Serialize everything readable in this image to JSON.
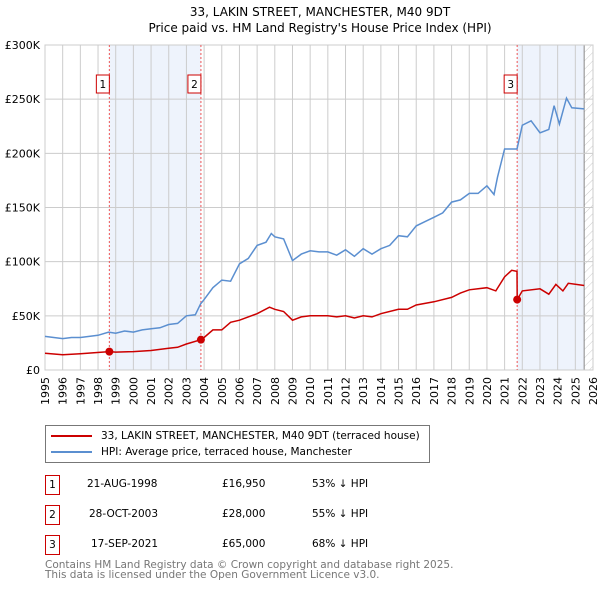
{
  "chart_data": {
    "type": "line",
    "title": "33, LAKIN STREET, MANCHESTER, M40 9DT",
    "subtitle": "Price paid vs. HM Land Registry's House Price Index (HPI)",
    "xlim": [
      1995,
      2026
    ],
    "ylim": [
      0,
      300000
    ],
    "x_ticks": [
      "1995",
      "1996",
      "1997",
      "1998",
      "1999",
      "2000",
      "2001",
      "2002",
      "2003",
      "2004",
      "2005",
      "2006",
      "2007",
      "2008",
      "2009",
      "2010",
      "2011",
      "2012",
      "2013",
      "2014",
      "2015",
      "2016",
      "2017",
      "2018",
      "2019",
      "2020",
      "2021",
      "2022",
      "2023",
      "2024",
      "2025",
      "2026"
    ],
    "y_ticks": [
      {
        "v": 0,
        "label": "£0"
      },
      {
        "v": 50000,
        "label": "£50K"
      },
      {
        "v": 100000,
        "label": "£100K"
      },
      {
        "v": 150000,
        "label": "£150K"
      },
      {
        "v": 200000,
        "label": "£200K"
      },
      {
        "v": 250000,
        "label": "£250K"
      },
      {
        "v": 300000,
        "label": "£300K"
      }
    ],
    "grid": true,
    "colors": {
      "price": "#cc0000",
      "hpi": "#5b8fd0",
      "shade": "#eef3fc"
    },
    "series": [
      {
        "name": "33, LAKIN STREET, MANCHESTER, M40 9DT (terraced house)",
        "points": [
          [
            1995,
            15500
          ],
          [
            1996,
            14000
          ],
          [
            1997,
            15000
          ],
          [
            1998.64,
            16950
          ],
          [
            1999,
            16500
          ],
          [
            2000,
            17000
          ],
          [
            2001,
            18000
          ],
          [
            2002,
            20000
          ],
          [
            2002.5,
            21000
          ],
          [
            2003,
            24000
          ],
          [
            2003.82,
            28000
          ],
          [
            2004,
            30000
          ],
          [
            2004.5,
            37000
          ],
          [
            2005,
            37000
          ],
          [
            2005.5,
            44000
          ],
          [
            2006,
            46000
          ],
          [
            2007,
            52000
          ],
          [
            2007.7,
            58000
          ],
          [
            2008,
            56000
          ],
          [
            2008.5,
            54000
          ],
          [
            2009,
            46000
          ],
          [
            2009.5,
            49000
          ],
          [
            2010,
            50000
          ],
          [
            2011,
            50000
          ],
          [
            2011.5,
            49000
          ],
          [
            2012,
            50000
          ],
          [
            2012.5,
            48000
          ],
          [
            2013,
            50000
          ],
          [
            2013.5,
            49000
          ],
          [
            2014,
            52000
          ],
          [
            2015,
            56000
          ],
          [
            2015.5,
            56000
          ],
          [
            2016,
            60000
          ],
          [
            2017,
            63000
          ],
          [
            2018,
            67000
          ],
          [
            2018.5,
            71000
          ],
          [
            2019,
            74000
          ],
          [
            2020,
            76000
          ],
          [
            2020.5,
            73000
          ],
          [
            2021,
            86000
          ],
          [
            2021.4,
            92000
          ],
          [
            2021.7,
            91000
          ],
          [
            2021.71,
            65000
          ],
          [
            2022,
            73000
          ],
          [
            2023,
            75000
          ],
          [
            2023.5,
            70000
          ],
          [
            2023.9,
            79000
          ],
          [
            2024.3,
            73000
          ],
          [
            2024.6,
            80000
          ],
          [
            2025.5,
            78000
          ]
        ]
      },
      {
        "name": "HPI: Average price, terraced house, Manchester",
        "points": [
          [
            1995,
            31000
          ],
          [
            1995.5,
            30000
          ],
          [
            1996,
            29000
          ],
          [
            1996.5,
            30000
          ],
          [
            1997,
            30000
          ],
          [
            1997.5,
            31000
          ],
          [
            1998,
            32000
          ],
          [
            1998.6,
            35000
          ],
          [
            1999,
            34000
          ],
          [
            1999.5,
            36000
          ],
          [
            2000,
            35000
          ],
          [
            2000.5,
            37000
          ],
          [
            2001,
            38000
          ],
          [
            2001.5,
            39000
          ],
          [
            2002,
            42000
          ],
          [
            2002.5,
            43000
          ],
          [
            2003,
            50000
          ],
          [
            2003.5,
            51000
          ],
          [
            2003.8,
            61000
          ],
          [
            2004,
            65000
          ],
          [
            2004.5,
            76000
          ],
          [
            2005,
            83000
          ],
          [
            2005.5,
            82000
          ],
          [
            2006,
            98000
          ],
          [
            2006.5,
            103000
          ],
          [
            2007,
            115000
          ],
          [
            2007.5,
            118000
          ],
          [
            2007.8,
            126000
          ],
          [
            2008,
            123000
          ],
          [
            2008.5,
            121000
          ],
          [
            2009,
            101000
          ],
          [
            2009.5,
            107000
          ],
          [
            2010,
            110000
          ],
          [
            2010.5,
            109000
          ],
          [
            2011,
            109000
          ],
          [
            2011.5,
            106000
          ],
          [
            2012,
            111000
          ],
          [
            2012.5,
            105000
          ],
          [
            2013,
            112000
          ],
          [
            2013.5,
            107000
          ],
          [
            2014,
            112000
          ],
          [
            2014.5,
            115000
          ],
          [
            2015,
            124000
          ],
          [
            2015.5,
            123000
          ],
          [
            2016,
            133000
          ],
          [
            2016.5,
            137000
          ],
          [
            2017,
            141000
          ],
          [
            2017.5,
            145000
          ],
          [
            2018,
            155000
          ],
          [
            2018.5,
            157000
          ],
          [
            2019,
            163000
          ],
          [
            2019.5,
            163000
          ],
          [
            2020,
            170000
          ],
          [
            2020.4,
            162000
          ],
          [
            2020.6,
            178000
          ],
          [
            2021,
            204000
          ],
          [
            2021.7,
            204000
          ],
          [
            2022,
            226000
          ],
          [
            2022.5,
            230000
          ],
          [
            2023,
            219000
          ],
          [
            2023.5,
            222000
          ],
          [
            2023.8,
            244000
          ],
          [
            2024.1,
            227000
          ],
          [
            2024.5,
            251000
          ],
          [
            2024.8,
            242000
          ],
          [
            2025.5,
            241000
          ]
        ]
      }
    ],
    "sales": [
      {
        "id": "1",
        "x": 1998.64,
        "price": 16950,
        "date": "21-AUG-1998",
        "price_label": "£16,950",
        "hpi_diff": "53% ↓ HPI"
      },
      {
        "id": "2",
        "x": 2003.82,
        "price": 28000,
        "date": "28-OCT-2003",
        "price_label": "£28,000",
        "hpi_diff": "55% ↓ HPI"
      },
      {
        "id": "3",
        "x": 2021.71,
        "price": 65000,
        "date": "17-SEP-2021",
        "price_label": "£65,000",
        "hpi_diff": "68% ↓ HPI"
      }
    ],
    "data_end": 2025.5,
    "legend_placement": "below"
  },
  "footer": {
    "line1": "Contains HM Land Registry data © Crown copyright and database right 2025.",
    "line2": "This data is licensed under the Open Government Licence v3.0."
  }
}
